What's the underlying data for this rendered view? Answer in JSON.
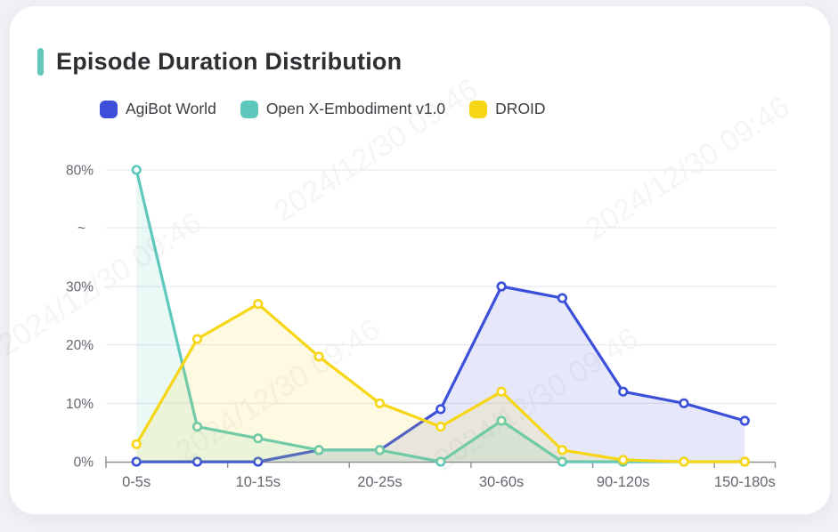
{
  "page": {
    "background_color": "#eff1f4",
    "card_background_color": "#ffffff"
  },
  "header": {
    "title": "Episode Duration Distribution",
    "accent_color": "#63c6bb"
  },
  "watermark": {
    "text": "2024/12/30 09:46"
  },
  "chart_data": {
    "type": "line",
    "title": "Episode Duration Distribution",
    "legend_position": "top",
    "grid": true,
    "points_per_series": 11,
    "x_tick_labels": [
      "0-5s",
      "10-15s",
      "20-25s",
      "30-60s",
      "90-120s",
      "150-180s"
    ],
    "x_label_point_indices": [
      0,
      2,
      4,
      6,
      8,
      10
    ],
    "y_axis": {
      "broken": true,
      "unit": "%",
      "ticks": [
        {
          "label": "0%",
          "value": 0
        },
        {
          "label": "10%",
          "value": 10
        },
        {
          "label": "20%",
          "value": 20
        },
        {
          "label": "30%",
          "value": 30
        },
        {
          "label": "~",
          "value": "break"
        },
        {
          "label": "80%",
          "value": 80
        }
      ]
    },
    "series": [
      {
        "name": "AgiBot World",
        "color": "#3b4fd8",
        "values": [
          0,
          0,
          0,
          2,
          2,
          9,
          30,
          28,
          12,
          10,
          7
        ]
      },
      {
        "name": "Open X-Embodiment v1.0",
        "color": "#5ec8bc",
        "values": [
          80,
          6,
          4,
          2,
          2,
          0,
          7,
          0,
          0,
          0,
          0
        ]
      },
      {
        "name": "DROID",
        "color": "#f6d615",
        "values": [
          3,
          21,
          27,
          18,
          10,
          6,
          12,
          2,
          0.3,
          0,
          0
        ]
      }
    ],
    "style": {
      "area_fill_opacity": 0.13,
      "line_width": 3.2,
      "grid_color": "#e8eaf0",
      "axis_color": "#8f9196",
      "label_color": "#64676f"
    }
  }
}
